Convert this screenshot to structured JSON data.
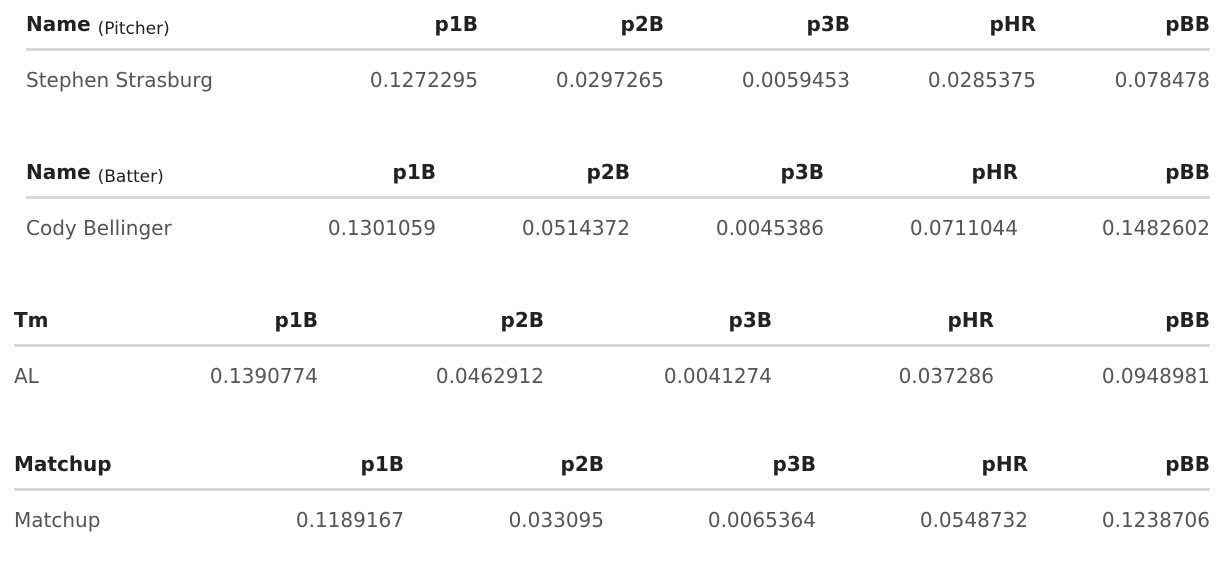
{
  "tables": [
    {
      "columns": {
        "name": "Name",
        "name_note": "(Pitcher)",
        "p1b": "p1B",
        "p2b": "p2B",
        "p3b": "p3B",
        "phr": "pHR",
        "pbb": "pBB"
      },
      "row": {
        "name": "Stephen Strasburg",
        "p1b": "0.1272295",
        "p2b": "0.0297265",
        "p3b": "0.0059453",
        "phr": "0.0285375",
        "pbb": "0.078478"
      }
    },
    {
      "columns": {
        "name": "Name",
        "name_note": "(Batter)",
        "p1b": "p1B",
        "p2b": "p2B",
        "p3b": "p3B",
        "phr": "pHR",
        "pbb": "pBB"
      },
      "row": {
        "name": "Cody Bellinger",
        "p1b": "0.1301059",
        "p2b": "0.0514372",
        "p3b": "0.0045386",
        "phr": "0.0711044",
        "pbb": "0.1482602"
      }
    },
    {
      "columns": {
        "name": "Tm",
        "p1b": "p1B",
        "p2b": "p2B",
        "p3b": "p3B",
        "phr": "pHR",
        "pbb": "pBB"
      },
      "row": {
        "name": "AL",
        "p1b": "0.1390774",
        "p2b": "0.0462912",
        "p3b": "0.0041274",
        "phr": "0.037286",
        "pbb": "0.0948981"
      }
    },
    {
      "columns": {
        "name": "Matchup",
        "p1b": "p1B",
        "p2b": "p2B",
        "p3b": "p3B",
        "phr": "pHR",
        "pbb": "pBB"
      },
      "row": {
        "name": "Matchup",
        "p1b": "0.1189167",
        "p2b": "0.033095",
        "p3b": "0.0065364",
        "phr": "0.0548732",
        "pbb": "0.1238706"
      }
    }
  ]
}
